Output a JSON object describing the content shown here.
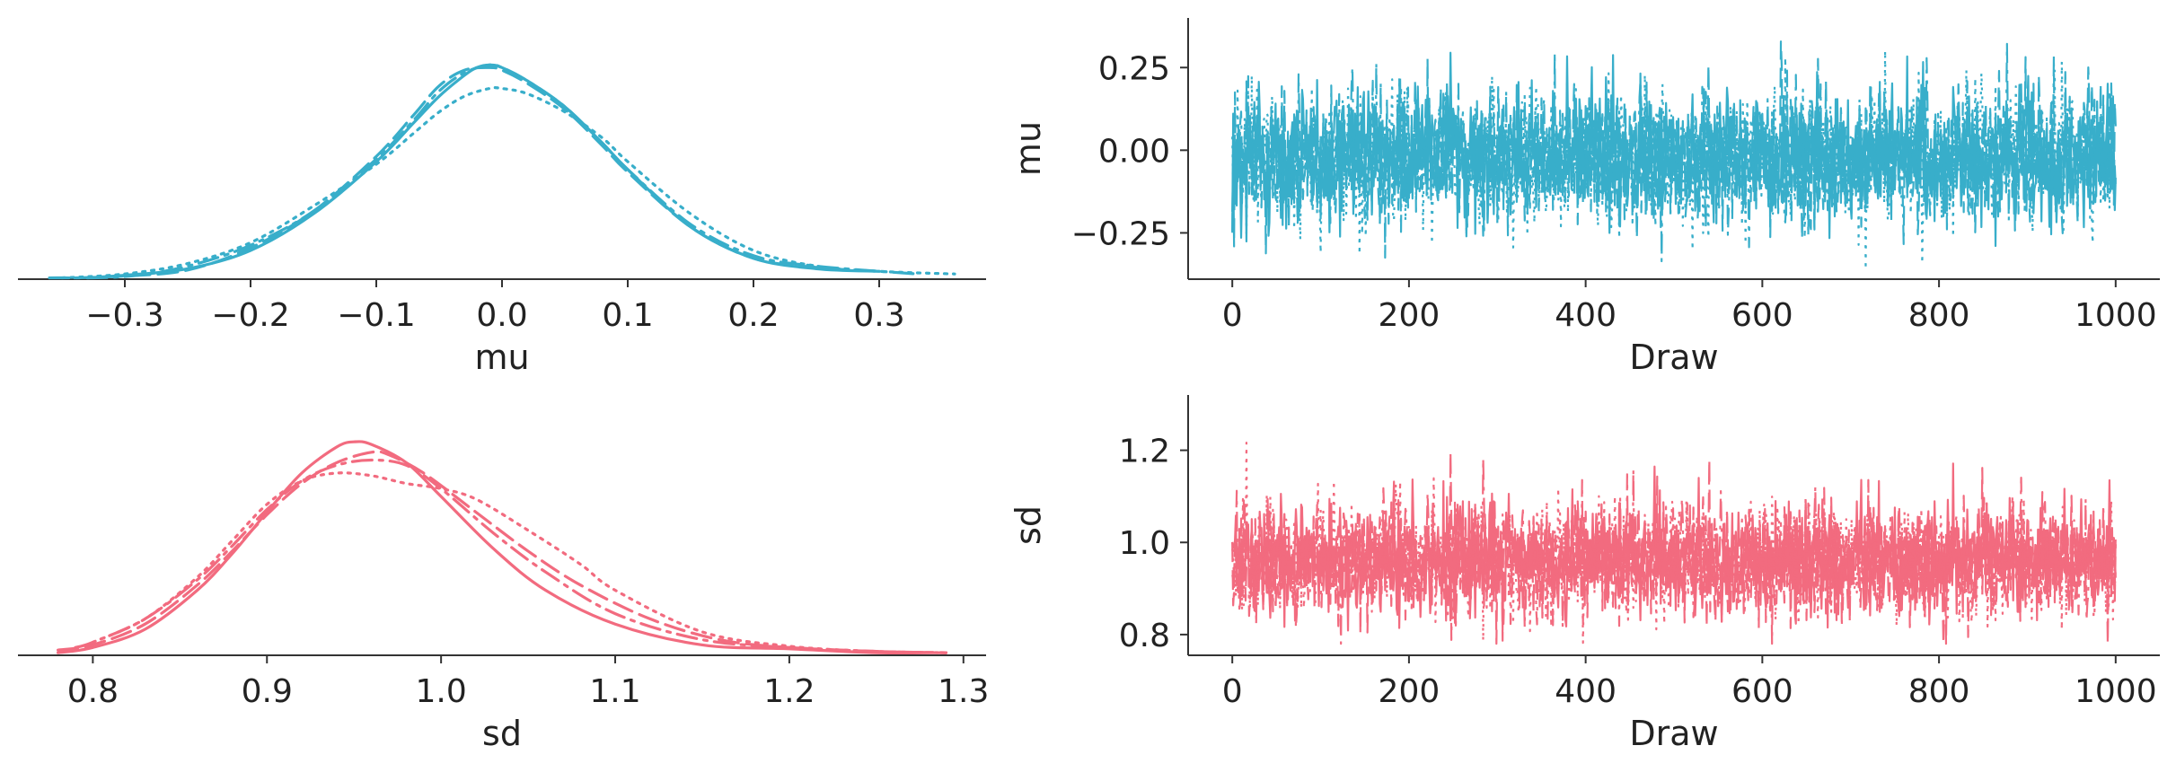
{
  "colors": {
    "mu": "#38AECA",
    "sd": "#F26B7F",
    "axis": "#333333",
    "text": "#222222"
  },
  "chart_data": [
    {
      "type": "line",
      "name": "mu-density",
      "xlabel": "mu",
      "ylabel": "",
      "xlim": [
        -0.385,
        0.385
      ],
      "ylim": [
        0,
        1.0
      ],
      "xticks": [
        -0.3,
        -0.2,
        -0.1,
        0.0,
        0.1,
        0.2,
        0.3
      ],
      "xticklabels": [
        "−0.3",
        "−0.2",
        "−0.1",
        "0.0",
        "0.1",
        "0.2",
        "0.3"
      ],
      "yticks": [],
      "grid": false,
      "color_key": "mu",
      "series": [
        {
          "dash": "solid",
          "x": [
            -0.33,
            -0.3,
            -0.25,
            -0.2,
            -0.15,
            -0.1,
            -0.07,
            -0.05,
            -0.03,
            -0.02,
            -0.01,
            0.0,
            0.02,
            0.05,
            0.08,
            0.1,
            0.15,
            0.2,
            0.25,
            0.3
          ],
          "y": [
            0.005,
            0.015,
            0.04,
            0.11,
            0.25,
            0.45,
            0.6,
            0.7,
            0.78,
            0.81,
            0.82,
            0.81,
            0.76,
            0.66,
            0.52,
            0.42,
            0.2,
            0.08,
            0.04,
            0.03
          ]
        },
        {
          "dash": "dashed",
          "x": [
            -0.34,
            -0.3,
            -0.25,
            -0.2,
            -0.15,
            -0.1,
            -0.07,
            -0.05,
            -0.03,
            -0.01,
            0.0,
            0.02,
            0.05,
            0.08,
            0.1,
            0.15,
            0.2,
            0.25,
            0.3
          ],
          "y": [
            0.005,
            0.012,
            0.035,
            0.12,
            0.26,
            0.47,
            0.63,
            0.74,
            0.8,
            0.81,
            0.8,
            0.75,
            0.65,
            0.51,
            0.41,
            0.2,
            0.08,
            0.045,
            0.03
          ]
        },
        {
          "dash": "dashdot",
          "x": [
            -0.36,
            -0.3,
            -0.25,
            -0.2,
            -0.15,
            -0.1,
            -0.07,
            -0.05,
            -0.03,
            -0.01,
            0.0,
            0.02,
            0.05,
            0.08,
            0.1,
            0.15,
            0.2,
            0.25,
            0.33
          ],
          "y": [
            0.005,
            0.01,
            0.05,
            0.13,
            0.26,
            0.46,
            0.61,
            0.72,
            0.79,
            0.82,
            0.81,
            0.76,
            0.66,
            0.52,
            0.42,
            0.21,
            0.09,
            0.05,
            0.02
          ]
        },
        {
          "dash": "dotted",
          "x": [
            -0.35,
            -0.3,
            -0.25,
            -0.2,
            -0.15,
            -0.1,
            -0.07,
            -0.05,
            -0.03,
            -0.01,
            0.0,
            0.02,
            0.05,
            0.08,
            0.1,
            0.15,
            0.2,
            0.25,
            0.3,
            0.36
          ],
          "y": [
            0.005,
            0.02,
            0.06,
            0.14,
            0.28,
            0.44,
            0.56,
            0.64,
            0.7,
            0.73,
            0.73,
            0.71,
            0.64,
            0.54,
            0.45,
            0.25,
            0.11,
            0.05,
            0.03,
            0.02
          ]
        }
      ]
    },
    {
      "type": "line",
      "name": "mu-trace",
      "xlabel": "Draw",
      "ylabel": "mu",
      "xlim": [
        -50,
        1050
      ],
      "ylim": [
        -0.39,
        0.4
      ],
      "xticks": [
        0,
        200,
        400,
        600,
        800,
        1000
      ],
      "xticklabels": [
        "0",
        "200",
        "400",
        "600",
        "800",
        "1000"
      ],
      "yticks": [
        -0.25,
        0.0,
        0.25
      ],
      "yticklabels": [
        "−0.25",
        "0.00",
        "0.25"
      ],
      "grid": false,
      "color_key": "mu",
      "trace": {
        "draws": 1000,
        "chains": 4,
        "center": -0.02,
        "spread": 0.1,
        "min": -0.36,
        "max": 0.36
      }
    },
    {
      "type": "line",
      "name": "sd-density",
      "xlabel": "sd",
      "ylabel": "",
      "xlim": [
        0.757,
        1.313
      ],
      "ylim": [
        0,
        1.0
      ],
      "xticks": [
        0.8,
        0.9,
        1.0,
        1.1,
        1.2,
        1.3
      ],
      "xticklabels": [
        "0.8",
        "0.9",
        "1.0",
        "1.1",
        "1.2",
        "1.3"
      ],
      "yticks": [],
      "grid": false,
      "color_key": "sd",
      "series": [
        {
          "dash": "solid",
          "x": [
            0.78,
            0.8,
            0.83,
            0.86,
            0.88,
            0.9,
            0.92,
            0.94,
            0.95,
            0.96,
            0.98,
            1.0,
            1.03,
            1.06,
            1.1,
            1.15,
            1.2,
            1.25,
            1.29
          ],
          "y": [
            0.01,
            0.03,
            0.1,
            0.25,
            0.39,
            0.55,
            0.7,
            0.8,
            0.82,
            0.81,
            0.74,
            0.61,
            0.41,
            0.25,
            0.12,
            0.04,
            0.025,
            0.01,
            0.01
          ]
        },
        {
          "dash": "dashed",
          "x": [
            0.78,
            0.8,
            0.83,
            0.86,
            0.88,
            0.9,
            0.92,
            0.94,
            0.96,
            0.97,
            0.99,
            1.02,
            1.05,
            1.08,
            1.12,
            1.16,
            1.2,
            1.25,
            1.29
          ],
          "y": [
            0.02,
            0.04,
            0.12,
            0.27,
            0.4,
            0.54,
            0.66,
            0.74,
            0.78,
            0.77,
            0.7,
            0.55,
            0.4,
            0.27,
            0.14,
            0.06,
            0.03,
            0.015,
            0.01
          ]
        },
        {
          "dash": "dashdot",
          "x": [
            0.79,
            0.8,
            0.83,
            0.86,
            0.88,
            0.9,
            0.92,
            0.94,
            0.96,
            0.98,
            1.0,
            1.03,
            1.06,
            1.1,
            1.15,
            1.2,
            1.25,
            1.29
          ],
          "y": [
            0.03,
            0.05,
            0.14,
            0.29,
            0.42,
            0.56,
            0.67,
            0.73,
            0.75,
            0.73,
            0.64,
            0.47,
            0.32,
            0.16,
            0.06,
            0.03,
            0.015,
            0.01
          ]
        },
        {
          "dash": "dotted",
          "x": [
            0.8,
            0.83,
            0.86,
            0.88,
            0.9,
            0.92,
            0.94,
            0.96,
            0.98,
            1.0,
            1.02,
            1.05,
            1.08,
            1.1,
            1.15,
            1.2,
            1.25,
            1.29
          ],
          "y": [
            0.05,
            0.14,
            0.3,
            0.44,
            0.58,
            0.67,
            0.7,
            0.69,
            0.66,
            0.64,
            0.6,
            0.48,
            0.35,
            0.25,
            0.09,
            0.035,
            0.015,
            0.01
          ]
        }
      ]
    },
    {
      "type": "line",
      "name": "sd-trace",
      "xlabel": "Draw",
      "ylabel": "sd",
      "xlim": [
        -50,
        1050
      ],
      "ylim": [
        0.755,
        1.32
      ],
      "xticks": [
        0,
        200,
        400,
        600,
        800,
        1000
      ],
      "xticklabels": [
        "0",
        "200",
        "400",
        "600",
        "800",
        "1000"
      ],
      "yticks": [
        0.8,
        1.0,
        1.2
      ],
      "yticklabels": [
        "0.8",
        "1.0",
        "1.2"
      ],
      "grid": false,
      "color_key": "sd",
      "trace": {
        "draws": 1000,
        "chains": 4,
        "center": 0.96,
        "spread": 0.06,
        "min": 0.78,
        "max": 1.29
      }
    }
  ]
}
